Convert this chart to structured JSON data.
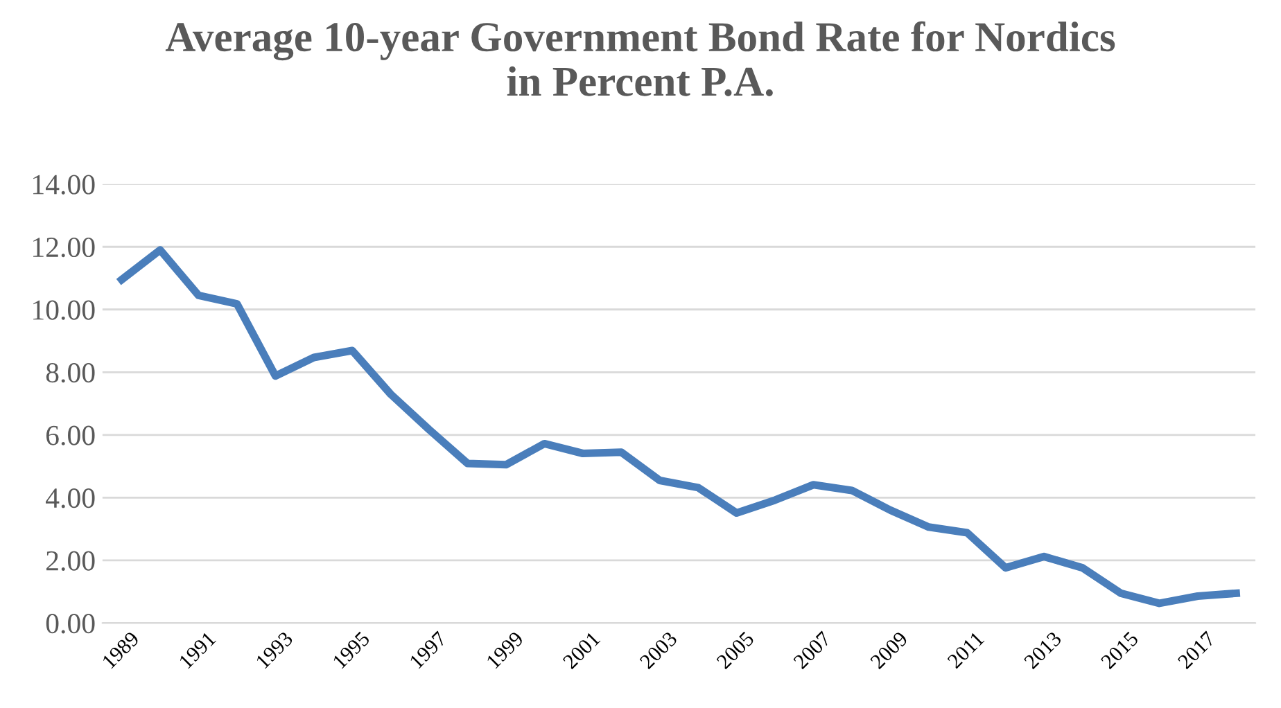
{
  "chart_data": {
    "type": "line",
    "title": "Average 10-year Government Bond Rate for Nordics\nin Percent P.A.",
    "categories": [
      "1989",
      null,
      "1991",
      null,
      "1993",
      null,
      "1995",
      null,
      "1997",
      null,
      "1999",
      null,
      "2001",
      null,
      "2003",
      null,
      "2005",
      null,
      "2007",
      null,
      "2009",
      null,
      "2011",
      null,
      "2013",
      null,
      "2015",
      null,
      "2017",
      null
    ],
    "series": [
      {
        "color": "#4a7ebb",
        "values": [
          10.95,
          11.9,
          10.45,
          10.18,
          7.88,
          8.47,
          8.69,
          7.3,
          6.17,
          5.09,
          5.05,
          5.72,
          5.41,
          5.45,
          4.55,
          4.32,
          3.51,
          3.92,
          4.41,
          4.23,
          3.6,
          3.06,
          2.88,
          1.76,
          2.12,
          1.76,
          0.95,
          0.63,
          0.86,
          0.95
        ]
      }
    ],
    "ylim": [
      0,
      14
    ],
    "yticks": [
      {
        "value": 0,
        "label": "0.00"
      },
      {
        "value": 2,
        "label": "2.00"
      },
      {
        "value": 4,
        "label": "4.00"
      },
      {
        "value": 6,
        "label": "6.00"
      },
      {
        "value": 8,
        "label": "8.00"
      },
      {
        "value": 10,
        "label": "10.00"
      },
      {
        "value": 12,
        "label": "12.00"
      },
      {
        "value": 14,
        "label": "14.00"
      }
    ],
    "grid": "y",
    "legend": false,
    "marker": "none",
    "line_style": "solid"
  }
}
